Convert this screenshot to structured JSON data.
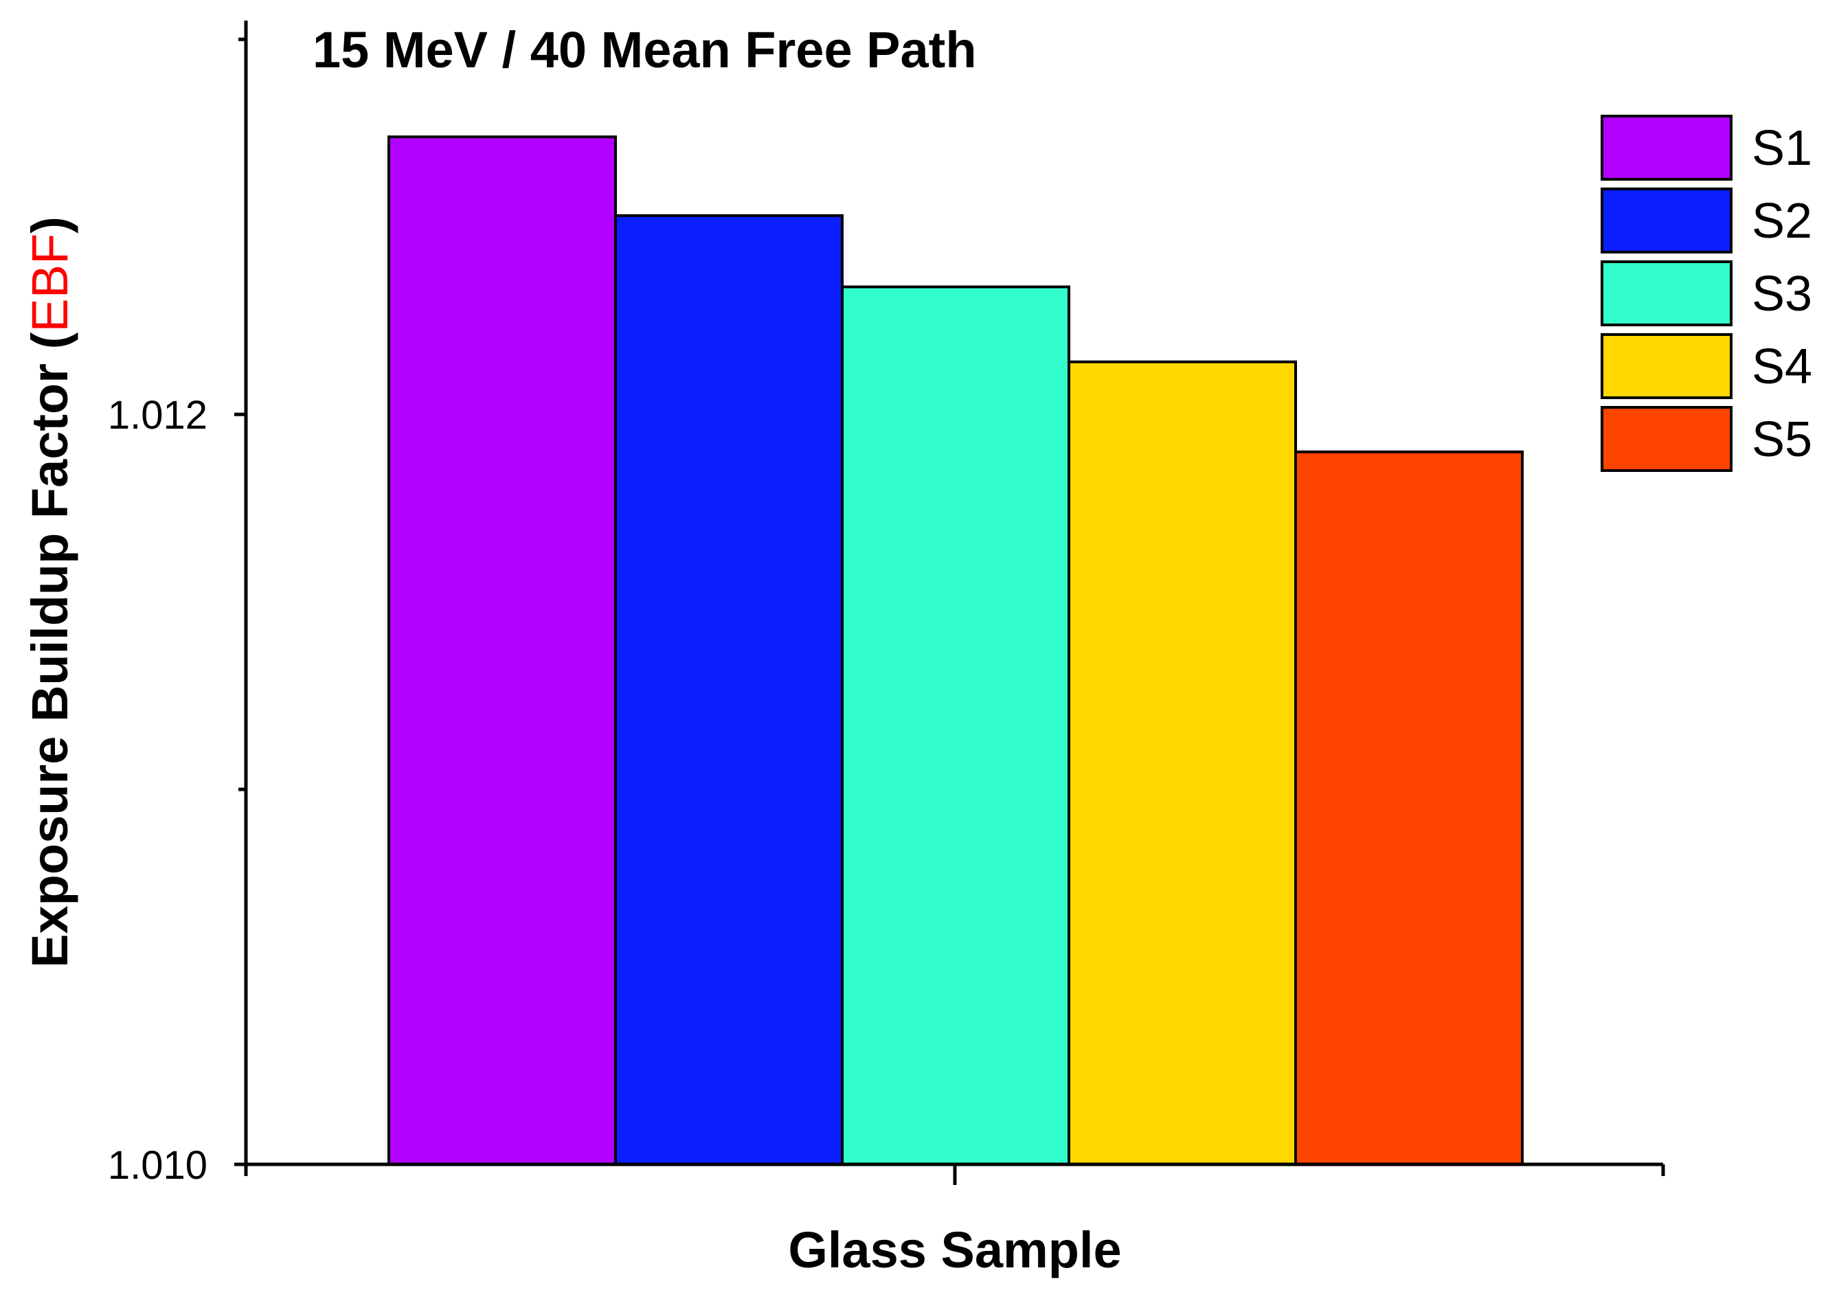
{
  "chart_data": {
    "type": "bar",
    "title": "15 MeV / 40 Mean Free Path",
    "xlabel": "Glass Sample",
    "ylabel": {
      "prefix": "Exposure Buildup Factor (",
      "highlight": "EBF",
      "suffix": ")"
    },
    "ylim": [
      1.01,
      1.01305
    ],
    "yticks": [
      1.01,
      1.012
    ],
    "ytick_labels": [
      "1.010",
      "1.012"
    ],
    "minor_yticks": [
      1.011,
      1.013
    ],
    "grid": false,
    "legend_position": "top-right",
    "series": [
      {
        "name": "S1",
        "value": 1.01274,
        "color": "#B200FF"
      },
      {
        "name": "S2",
        "value": 1.01253,
        "color": "#0A1EFF"
      },
      {
        "name": "S3",
        "value": 1.01234,
        "color": "#33FFCC"
      },
      {
        "name": "S4",
        "value": 1.01214,
        "color": "#FFD800"
      },
      {
        "name": "S5",
        "value": 1.0119,
        "color": "#FF4400"
      }
    ],
    "colors": {
      "ylabel_highlight": "#FF0000",
      "axis": "#000000",
      "bar_edge": "#000000"
    }
  }
}
